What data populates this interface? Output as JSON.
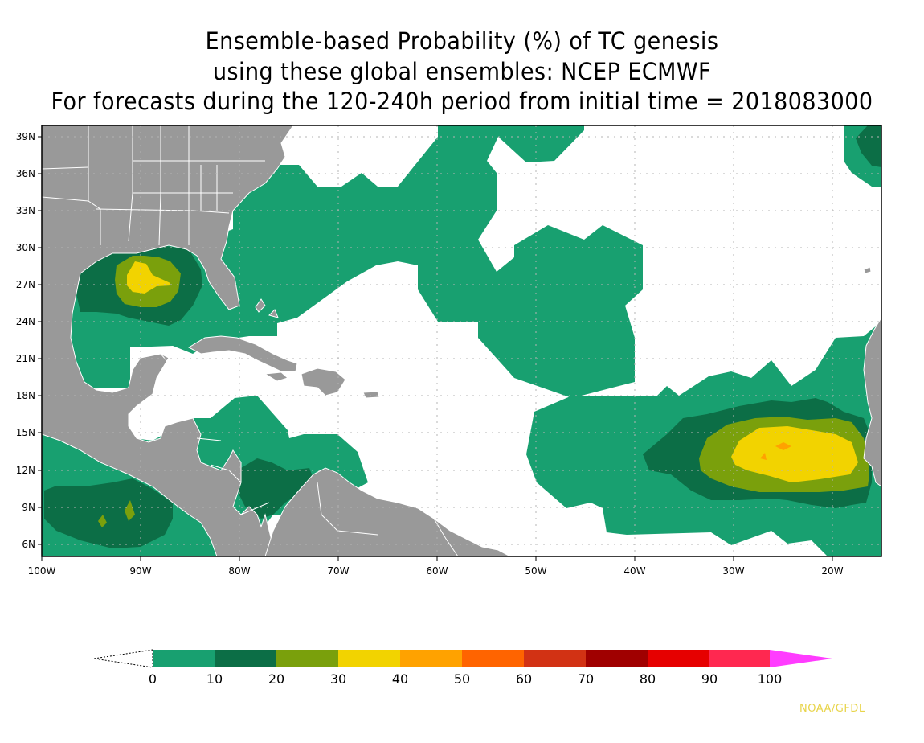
{
  "title": {
    "line1": "Ensemble-based Probability (%) of TC genesis",
    "line2": "using these global ensembles:   NCEP ECMWF",
    "line3": "For forecasts during the 120-240h period from initial time = 2018083000"
  },
  "map": {
    "lon_range": [
      -100,
      -15
    ],
    "lat_range": [
      5,
      40
    ],
    "lat_labels": [
      "39N",
      "36N",
      "33N",
      "30N",
      "27N",
      "24N",
      "21N",
      "18N",
      "15N",
      "12N",
      "9N",
      "6N"
    ],
    "lon_labels": [
      "100W",
      "90W",
      "80W",
      "70W",
      "60W",
      "50W",
      "40W",
      "30W",
      "20W"
    ],
    "grid": true,
    "land_color": "#999999",
    "ocean_color": "#ffffff",
    "genesis_areas": [
      {
        "region": "Gulf of Mexico",
        "max_level": "30-40"
      },
      {
        "region": "Eastern Atlantic near Cape Verde",
        "max_level": "40-50"
      },
      {
        "region": "Eastern Pacific off Central America",
        "max_level": "20-30"
      },
      {
        "region": "Caribbean north of Colombia",
        "max_level": "10-20"
      }
    ]
  },
  "colorbar": {
    "labels": [
      "0",
      "10",
      "20",
      "30",
      "40",
      "50",
      "60",
      "70",
      "80",
      "90",
      "100"
    ],
    "colors": [
      "#18a070",
      "#0c6e46",
      "#7aa00c",
      "#f2d300",
      "#ffa200",
      "#ff6400",
      "#d23214",
      "#a00000",
      "#e60000",
      "#ff2850",
      "#ff3cff"
    ],
    "under_color": "#ffffff"
  },
  "credit": "NOAA/GFDL"
}
